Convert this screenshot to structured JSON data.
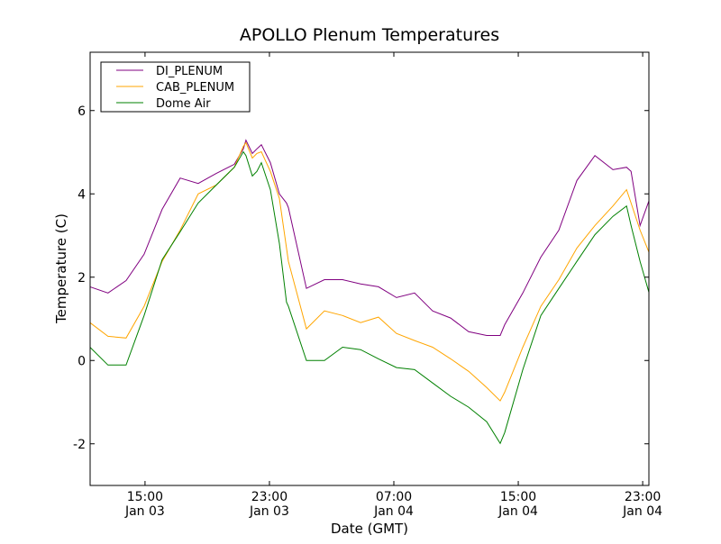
{
  "chart_data": {
    "type": "line",
    "title": "APOLLO Plenum Temperatures",
    "xlabel": "Date (GMT)",
    "ylabel": "Temperature (C)",
    "x_units": "hours since Jan 03 00:00 GMT",
    "xlim": [
      11.47,
      47.4
    ],
    "ylim": [
      -3,
      7.4
    ],
    "grid": false,
    "legend_position": "top-left",
    "xticks": [
      {
        "value": 15,
        "time": "15:00",
        "date": "Jan 03"
      },
      {
        "value": 23,
        "time": "23:00",
        "date": "Jan 03"
      },
      {
        "value": 31,
        "time": "07:00",
        "date": "Jan 04"
      },
      {
        "value": 39,
        "time": "15:00",
        "date": "Jan 04"
      },
      {
        "value": 47,
        "time": "23:00",
        "date": "Jan 04"
      }
    ],
    "yticks": [
      {
        "value": -2,
        "label": "-2"
      },
      {
        "value": 0,
        "label": "0"
      },
      {
        "value": 2,
        "label": "2"
      },
      {
        "value": 4,
        "label": "4"
      },
      {
        "value": 6,
        "label": "6"
      }
    ],
    "x": [
      11.46,
      12.62,
      13.78,
      14.94,
      16.1,
      17.26,
      18.42,
      19.58,
      20.74,
      21.32,
      21.49,
      21.9,
      22.19,
      22.48,
      23.06,
      23.64,
      24.1,
      24.22,
      25.38,
      26.54,
      27.7,
      28.86,
      30.01,
      31.17,
      32.33,
      33.49,
      34.65,
      35.81,
      36.97,
      37.84,
      38.13,
      39.29,
      40.45,
      41.61,
      42.77,
      43.93,
      45.09,
      45.96,
      46.25,
      46.83,
      47.41
    ],
    "series": [
      {
        "name": "DI_PLENUM",
        "color": "#800080",
        "values": [
          1.77,
          1.62,
          1.92,
          2.55,
          3.63,
          4.38,
          4.25,
          4.49,
          4.71,
          5.08,
          5.29,
          4.97,
          5.08,
          5.18,
          4.75,
          4.0,
          3.78,
          3.67,
          1.73,
          1.94,
          1.94,
          1.84,
          1.77,
          1.51,
          1.62,
          1.19,
          1.02,
          0.69,
          0.6,
          0.6,
          0.86,
          1.62,
          2.48,
          3.13,
          4.32,
          4.92,
          4.58,
          4.64,
          4.54,
          3.24,
          3.84
        ]
      },
      {
        "name": "CAB_PLENUM",
        "color": "#ffa500",
        "values": [
          0.91,
          0.58,
          0.54,
          1.3,
          2.38,
          3.13,
          4.0,
          4.21,
          4.64,
          5.14,
          5.23,
          4.86,
          4.97,
          5.01,
          4.54,
          3.89,
          2.7,
          2.38,
          0.76,
          1.19,
          1.08,
          0.91,
          1.04,
          0.65,
          0.48,
          0.32,
          0.04,
          -0.26,
          -0.65,
          -0.97,
          -0.76,
          0.32,
          1.3,
          1.94,
          2.7,
          3.24,
          3.71,
          4.1,
          3.78,
          3.13,
          2.59
        ]
      },
      {
        "name": "Dome Air",
        "color": "#008000",
        "values": [
          0.32,
          -0.11,
          -0.11,
          1.08,
          2.42,
          3.09,
          3.78,
          4.21,
          4.64,
          5.01,
          4.92,
          4.43,
          4.54,
          4.75,
          4.1,
          2.81,
          1.4,
          1.3,
          0.0,
          0.0,
          0.32,
          0.26,
          0.04,
          -0.17,
          -0.22,
          -0.54,
          -0.86,
          -1.12,
          -1.47,
          -1.99,
          -1.73,
          -0.22,
          1.08,
          1.73,
          2.38,
          3.02,
          3.46,
          3.71,
          3.24,
          2.38,
          1.62
        ]
      }
    ]
  }
}
